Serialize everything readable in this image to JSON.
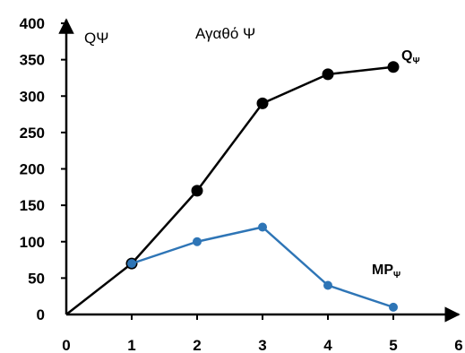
{
  "chart_data": {
    "type": "line",
    "title": "Αγαθό Ψ",
    "ylabel": "QΨ",
    "xlabel": "",
    "xlim": [
      0,
      6
    ],
    "ylim": [
      0,
      400
    ],
    "x_ticks": [
      "0",
      "1",
      "2",
      "3",
      "4",
      "5",
      "6"
    ],
    "y_ticks": [
      "0",
      "50",
      "100",
      "150",
      "200",
      "250",
      "300",
      "350",
      "400"
    ],
    "grid": false,
    "series": [
      {
        "name": "Q",
        "name_sub": "Ψ",
        "color": "#000000",
        "x": [
          0,
          1,
          2,
          3,
          4,
          5
        ],
        "y": [
          0,
          70,
          170,
          290,
          330,
          340
        ]
      },
      {
        "name": "MP",
        "name_sub": "Ψ",
        "color": "#2e75b6",
        "x": [
          1,
          2,
          3,
          4,
          5
        ],
        "y": [
          70,
          100,
          120,
          40,
          10
        ]
      }
    ]
  }
}
